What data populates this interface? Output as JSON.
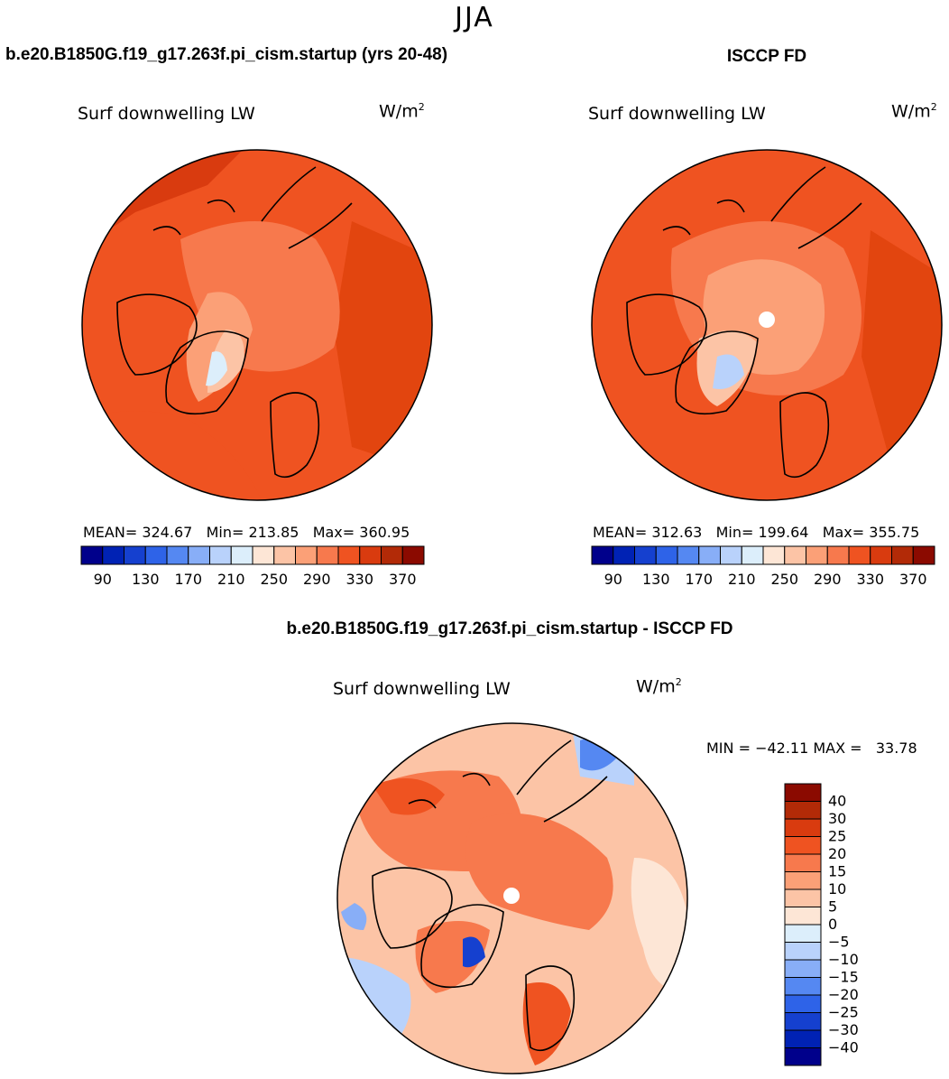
{
  "season": "JJA",
  "panels": {
    "case": {
      "title": "b.e20.B1850G.f19_g17.263f.pi_cism.startup (yrs 20-48)",
      "variable": "Surf downwelling LW",
      "units": "W/m",
      "units_exp": "2",
      "stats": "MEAN= 324.67   Min= 213.85   Max= 360.95"
    },
    "obs": {
      "title": "ISCCP FD",
      "variable": "Surf downwelling LW",
      "units": "W/m",
      "units_exp": "2",
      "stats": "MEAN= 312.63   Min= 199.64   Max= 355.75"
    },
    "diff": {
      "title": "b.e20.B1850G.f19_g17.263f.pi_cism.startup - ISCCP FD",
      "variable": "Surf downwelling LW",
      "units": "W/m",
      "units_exp": "2",
      "stats": "MIN = −42.11 MAX =   33.78"
    }
  },
  "colorbar_abs": {
    "colors": [
      "#00008b",
      "#0022b4",
      "#1540cf",
      "#2e63e8",
      "#5588f2",
      "#88aef7",
      "#b9d2fb",
      "#dceefb",
      "#fde6d6",
      "#fcc4a6",
      "#fba077",
      "#f7794d",
      "#ef5321",
      "#d93b0f",
      "#b22a07",
      "#8b0a00"
    ],
    "tick_labels": [
      "90",
      "130",
      "170",
      "210",
      "250",
      "290",
      "330",
      "370"
    ]
  },
  "colorbar_diff": {
    "colors": [
      "#8b0a00",
      "#b22a07",
      "#d93b0f",
      "#ef5321",
      "#f7794d",
      "#fba077",
      "#fcc4a6",
      "#fde6d6",
      "#dceefb",
      "#b9d2fb",
      "#88aef7",
      "#5588f2",
      "#2e63e8",
      "#1540cf",
      "#0022b4",
      "#00008b"
    ],
    "tick_labels": [
      "40",
      "30",
      "25",
      "20",
      "15",
      "10",
      "5",
      "0",
      "−5",
      "−10",
      "−15",
      "−20",
      "−25",
      "−30",
      "−40"
    ]
  }
}
